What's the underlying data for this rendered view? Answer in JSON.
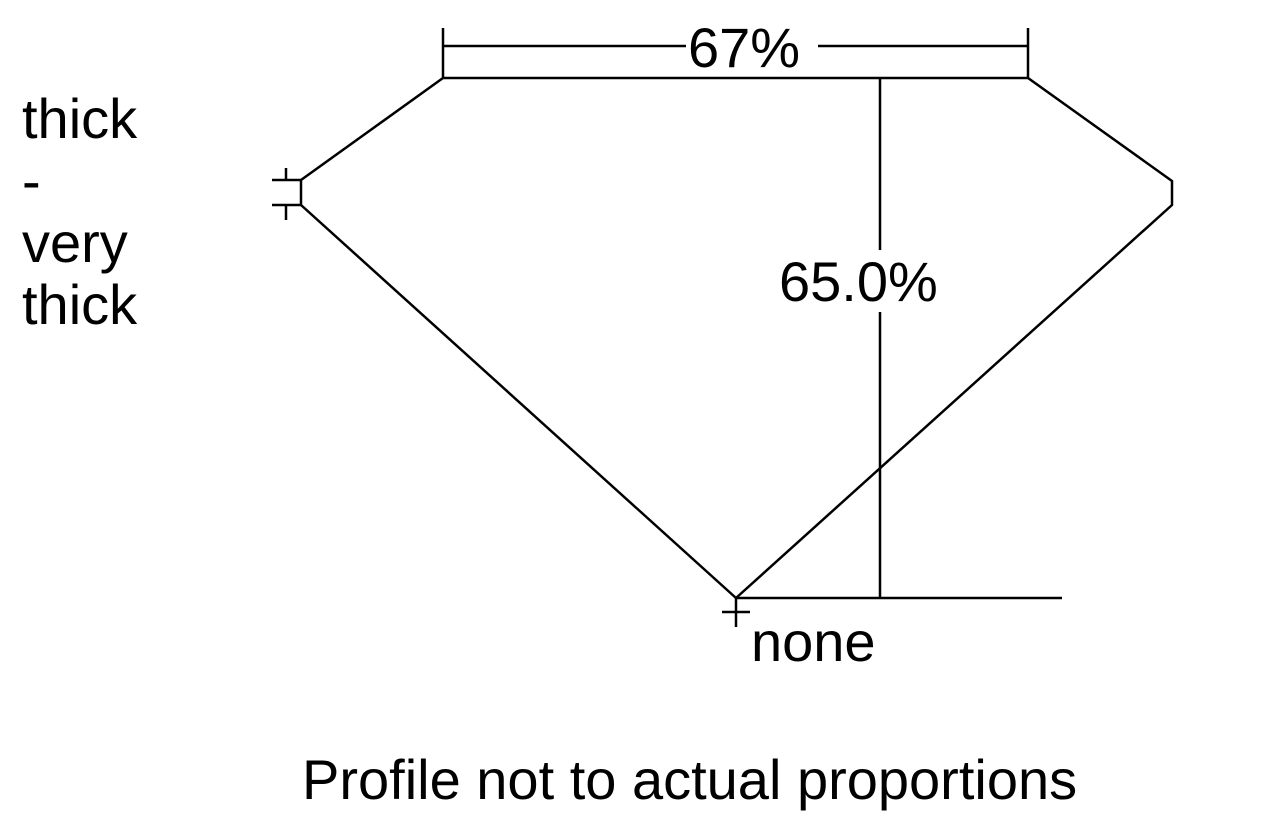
{
  "girdle_thickness": [
    "thick",
    "-",
    "very",
    "thick"
  ],
  "table_percent": "67%",
  "depth_percent": "65.0%",
  "culet": "none",
  "note": "Profile not to actual proportions"
}
